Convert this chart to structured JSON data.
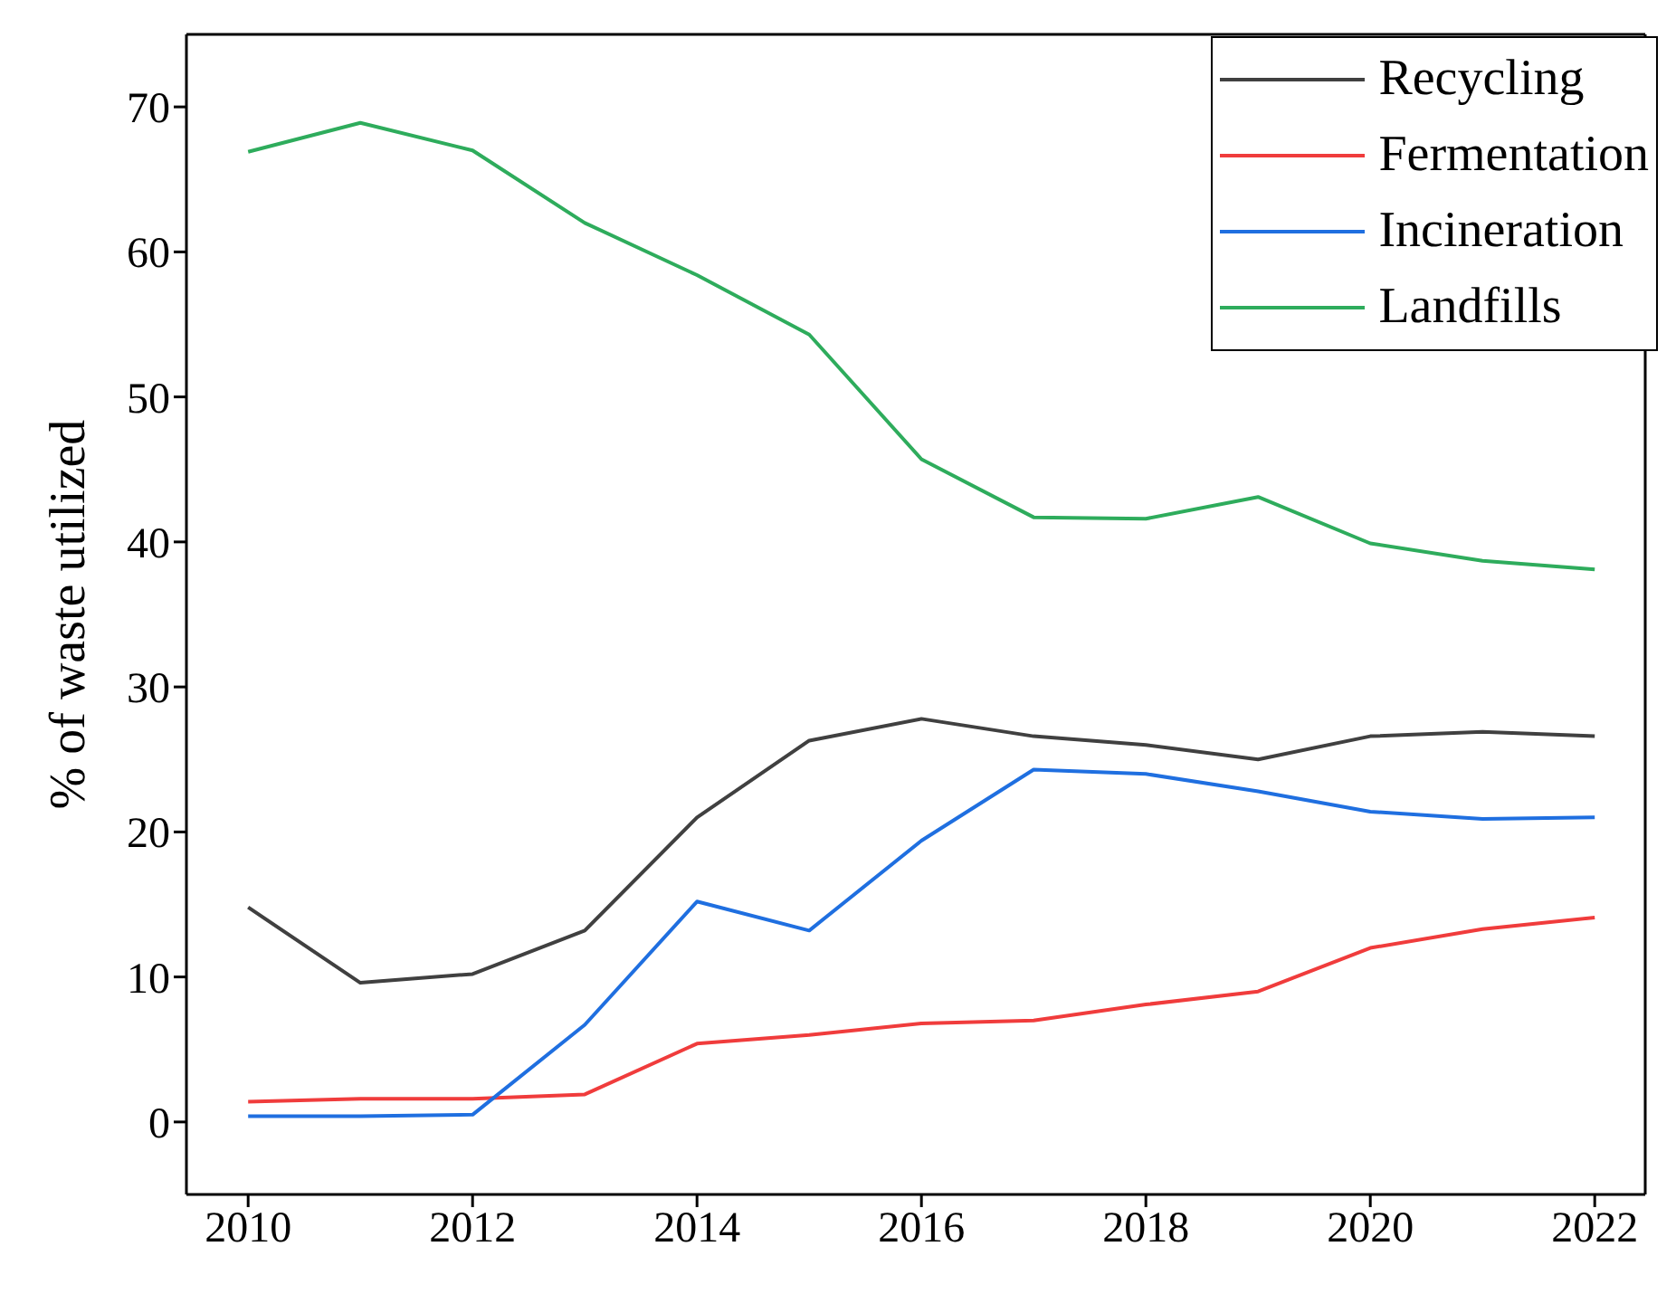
{
  "chart_data": {
    "type": "line",
    "ylabel": "% of waste utilized",
    "x": [
      2010,
      2011,
      2012,
      2013,
      2014,
      2015,
      2016,
      2017,
      2018,
      2019,
      2020,
      2021,
      2022
    ],
    "series": [
      {
        "name": "Recycling",
        "color": "#404040",
        "values": [
          14.8,
          9.6,
          10.2,
          13.2,
          21.0,
          26.3,
          27.8,
          26.6,
          26.0,
          25.0,
          26.6,
          26.9,
          26.6
        ]
      },
      {
        "name": "Fermentation",
        "color": "#f03c3c",
        "values": [
          1.4,
          1.6,
          1.6,
          1.9,
          5.4,
          6.0,
          6.8,
          7.0,
          8.1,
          9.0,
          12.0,
          13.3,
          14.1
        ]
      },
      {
        "name": "Incineration",
        "color": "#1f6fe0",
        "values": [
          0.4,
          0.4,
          0.5,
          6.7,
          15.2,
          13.2,
          19.4,
          24.3,
          24.0,
          22.8,
          21.4,
          20.9,
          21.0
        ]
      },
      {
        "name": "Landfills",
        "color": "#2eac5c",
        "values": [
          66.9,
          68.9,
          67.0,
          62.0,
          58.4,
          54.3,
          45.7,
          41.7,
          41.6,
          43.1,
          39.9,
          38.7,
          38.1
        ]
      }
    ],
    "xlim": [
      2009.45,
      2022.45
    ],
    "xticks": [
      2010,
      2012,
      2014,
      2016,
      2018,
      2020,
      2022
    ],
    "ylim": [
      -5,
      75
    ],
    "yticks": [
      0,
      10,
      20,
      30,
      40,
      50,
      60,
      70
    ],
    "grid": false,
    "legend": "top right",
    "marker": "none",
    "line_style": "solid"
  }
}
